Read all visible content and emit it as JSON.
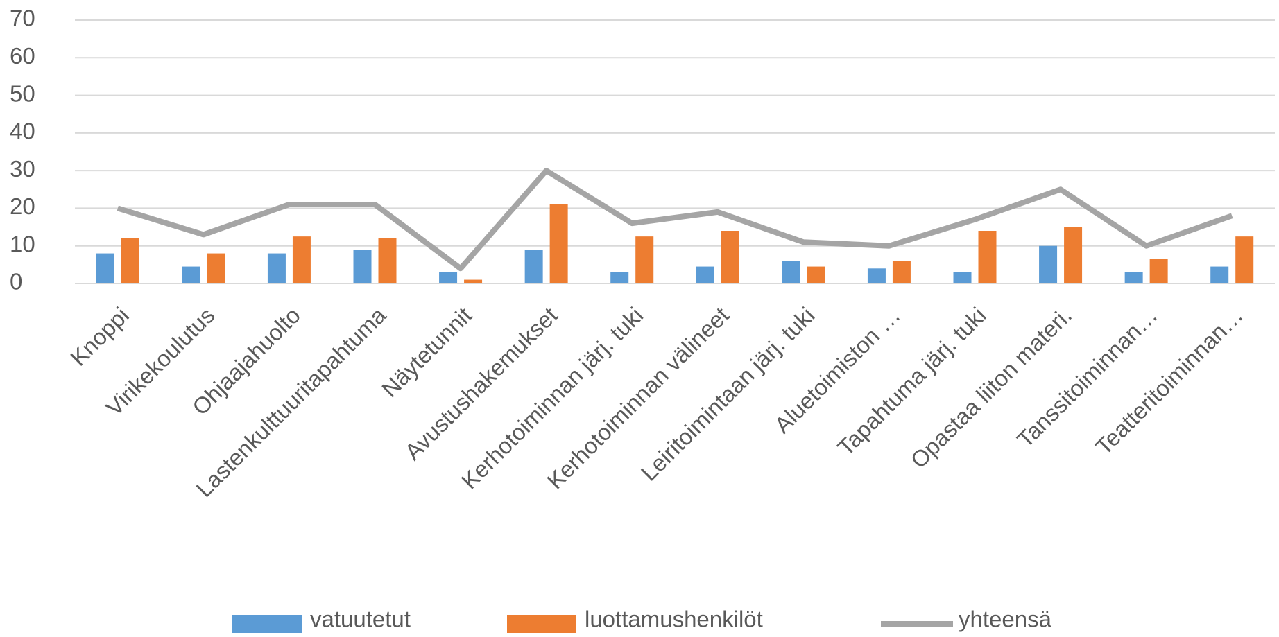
{
  "chart_data": {
    "type": "bar",
    "categories": [
      "Knoppi",
      "Virikekoulutus",
      "Ohjaajahuolto",
      "Lastenkulttuuritapahtuma",
      "Näytetunnit",
      "Avustushakemukset",
      "Kerhotoiminnan järj. tuki",
      "Kerhotoiminnan välineet",
      "Leiritoimintaan järj. tuki",
      "Aluetoimiston …",
      "Tapahtuma järj. tuki",
      "Opastaa liiton materi.",
      "Tanssitoiminnan…",
      "Teatteritoiminnan…"
    ],
    "series": [
      {
        "name": "vatuutetut",
        "type": "bar",
        "color": "#5b9bd5",
        "values": [
          8,
          4.5,
          8,
          9,
          3,
          9,
          3,
          4.5,
          6,
          4,
          3,
          10,
          3,
          4.5
        ]
      },
      {
        "name": "luottamushenkilöt",
        "type": "bar",
        "color": "#ed7d31",
        "values": [
          12,
          8,
          12.5,
          12,
          1,
          21,
          12.5,
          14,
          4.5,
          6,
          14,
          15,
          6.5,
          12.5
        ]
      },
      {
        "name": "yhteensä",
        "type": "line",
        "color": "#a5a5a5",
        "values": [
          20,
          13,
          21,
          21,
          4,
          30,
          16,
          19,
          11,
          10,
          17,
          25,
          10,
          18
        ]
      }
    ],
    "ylim": [
      0,
      70
    ],
    "yticks": [
      0,
      10,
      20,
      30,
      40,
      50,
      60,
      70
    ],
    "grid": true,
    "legend": "bottom"
  }
}
